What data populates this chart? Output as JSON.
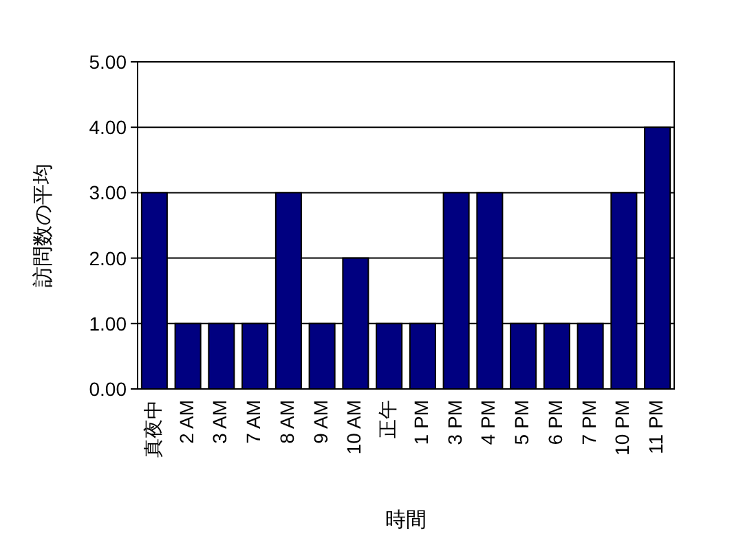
{
  "chart_data": {
    "type": "bar",
    "xlabel": "時間",
    "ylabel": "訪問数の平均",
    "categories": [
      "真夜中",
      "2 AM",
      "3 AM",
      "7 AM",
      "8 AM",
      "9 AM",
      "10 AM",
      "正午",
      "1 PM",
      "3 PM",
      "4 PM",
      "5 PM",
      "6 PM",
      "7 PM",
      "10 PM",
      "11 PM"
    ],
    "values": [
      3,
      1,
      1,
      1,
      3,
      1,
      2,
      1,
      1,
      3,
      3,
      1,
      1,
      1,
      3,
      4
    ],
    "color": "#000080",
    "ylim": [
      0,
      5
    ],
    "yticks": [
      {
        "value": 0,
        "label": "0.00"
      },
      {
        "value": 1,
        "label": "1.00"
      },
      {
        "value": 2,
        "label": "2.00"
      },
      {
        "value": 3,
        "label": "3.00"
      },
      {
        "value": 4,
        "label": "4.00"
      },
      {
        "value": 5,
        "label": "5.00"
      }
    ],
    "grid": "y"
  }
}
